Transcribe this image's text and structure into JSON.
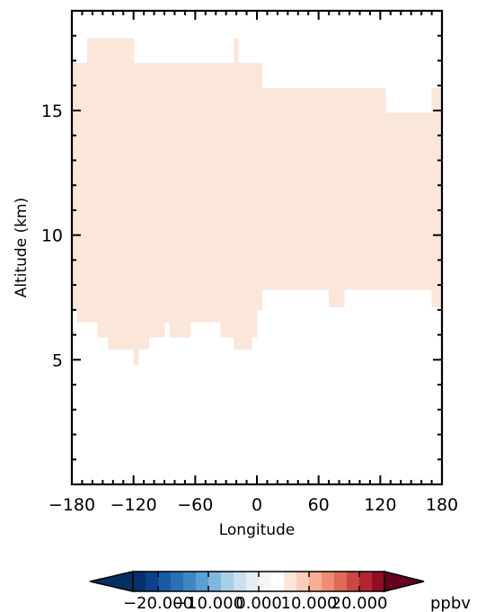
{
  "chart_data": {
    "type": "heatmap",
    "title": "",
    "xlabel": "Longitude",
    "ylabel": "Altitude (km)",
    "xlim": [
      -180,
      180
    ],
    "ylim": [
      0,
      19
    ],
    "x_ticks": [
      -180,
      -120,
      -60,
      0,
      60,
      120,
      180
    ],
    "x_tick_labels": [
      "−180",
      "−120",
      "−60",
      "0",
      "60",
      "120",
      "180"
    ],
    "y_ticks": [
      5,
      10,
      15
    ],
    "y_tick_labels": [
      "5",
      "10",
      "15"
    ],
    "field_color": "#fbe6da",
    "field_value_ppbv": 1,
    "field_columns": [
      {
        "lon": [
          -180,
          -175
        ],
        "alt": [
          7.0,
          16.9
        ]
      },
      {
        "lon": [
          -175,
          -165
        ],
        "alt": [
          6.5,
          16.9
        ]
      },
      {
        "lon": [
          -165,
          -155
        ],
        "alt": [
          6.5,
          17.9
        ]
      },
      {
        "lon": [
          -155,
          -145
        ],
        "alt": [
          5.9,
          17.9
        ]
      },
      {
        "lon": [
          -145,
          -135
        ],
        "alt": [
          5.4,
          17.9
        ]
      },
      {
        "lon": [
          -135,
          -125
        ],
        "alt": [
          5.4,
          17.9
        ]
      },
      {
        "lon": [
          -125,
          -120
        ],
        "alt": [
          5.4,
          17.9
        ]
      },
      {
        "lon": [
          -120,
          -115
        ],
        "alt": [
          4.8,
          16.9
        ]
      },
      {
        "lon": [
          -115,
          -105
        ],
        "alt": [
          5.4,
          16.9
        ]
      },
      {
        "lon": [
          -105,
          -95
        ],
        "alt": [
          5.9,
          16.9
        ]
      },
      {
        "lon": [
          -95,
          -90
        ],
        "alt": [
          5.9,
          16.9
        ]
      },
      {
        "lon": [
          -90,
          -85
        ],
        "alt": [
          6.5,
          16.9
        ]
      },
      {
        "lon": [
          -85,
          -75
        ],
        "alt": [
          5.9,
          16.9
        ]
      },
      {
        "lon": [
          -75,
          -65
        ],
        "alt": [
          5.9,
          16.9
        ]
      },
      {
        "lon": [
          -65,
          -55
        ],
        "alt": [
          6.5,
          16.9
        ]
      },
      {
        "lon": [
          -55,
          -45
        ],
        "alt": [
          6.5,
          16.9
        ]
      },
      {
        "lon": [
          -45,
          -35
        ],
        "alt": [
          6.5,
          16.9
        ]
      },
      {
        "lon": [
          -35,
          -25
        ],
        "alt": [
          5.9,
          16.9
        ]
      },
      {
        "lon": [
          -25,
          -22
        ],
        "alt": [
          5.9,
          16.9
        ]
      },
      {
        "lon": [
          -22,
          -18
        ],
        "alt": [
          5.4,
          17.9
        ]
      },
      {
        "lon": [
          -18,
          -15
        ],
        "alt": [
          5.4,
          16.9
        ]
      },
      {
        "lon": [
          -15,
          -5
        ],
        "alt": [
          5.4,
          16.9
        ]
      },
      {
        "lon": [
          -5,
          0
        ],
        "alt": [
          5.9,
          16.9
        ]
      },
      {
        "lon": [
          0,
          5
        ],
        "alt": [
          7.0,
          16.9
        ]
      },
      {
        "lon": [
          5,
          15
        ],
        "alt": [
          7.8,
          15.9
        ]
      },
      {
        "lon": [
          15,
          25
        ],
        "alt": [
          7.8,
          15.9
        ]
      },
      {
        "lon": [
          25,
          35
        ],
        "alt": [
          7.8,
          15.9
        ]
      },
      {
        "lon": [
          35,
          45
        ],
        "alt": [
          7.8,
          15.9
        ]
      },
      {
        "lon": [
          45,
          55
        ],
        "alt": [
          7.8,
          15.9
        ]
      },
      {
        "lon": [
          55,
          65
        ],
        "alt": [
          7.8,
          15.9
        ]
      },
      {
        "lon": [
          65,
          70
        ],
        "alt": [
          7.8,
          15.9
        ]
      },
      {
        "lon": [
          70,
          85
        ],
        "alt": [
          7.1,
          15.9
        ]
      },
      {
        "lon": [
          85,
          95
        ],
        "alt": [
          7.8,
          15.9
        ]
      },
      {
        "lon": [
          95,
          105
        ],
        "alt": [
          7.8,
          15.9
        ]
      },
      {
        "lon": [
          105,
          115
        ],
        "alt": [
          7.8,
          15.9
        ]
      },
      {
        "lon": [
          115,
          125
        ],
        "alt": [
          7.8,
          15.9
        ]
      },
      {
        "lon": [
          125,
          135
        ],
        "alt": [
          7.8,
          14.9
        ]
      },
      {
        "lon": [
          135,
          145
        ],
        "alt": [
          7.8,
          14.9
        ]
      },
      {
        "lon": [
          145,
          155
        ],
        "alt": [
          7.8,
          14.9
        ]
      },
      {
        "lon": [
          155,
          165
        ],
        "alt": [
          7.8,
          14.9
        ]
      },
      {
        "lon": [
          165,
          170
        ],
        "alt": [
          7.8,
          14.9
        ]
      },
      {
        "lon": [
          170,
          180
        ],
        "alt": [
          7.1,
          15.9
        ]
      }
    ],
    "colorbar": {
      "range": [
        -25,
        25
      ],
      "ticks": [
        -20,
        -10,
        0,
        10,
        20
      ],
      "tick_labels": [
        "−20.000",
        "−10.000",
        "0.000",
        "10.000",
        "20.000"
      ],
      "unit": "ppbv",
      "under_color": "#053061",
      "over_color": "#67001f",
      "colors": [
        "#08306b",
        "#0b428a",
        "#1a5aa3",
        "#2b6fb6",
        "#3d86c4",
        "#5a9fd1",
        "#7eb8de",
        "#a6cfe8",
        "#c9e1ef",
        "#e4eef5",
        "#f7f7f7",
        "#ffffff",
        "#fde5d8",
        "#fbcdb9",
        "#f7ae95",
        "#ef8c72",
        "#e06a56",
        "#cc4742",
        "#b32631",
        "#8f0d25"
      ]
    }
  }
}
